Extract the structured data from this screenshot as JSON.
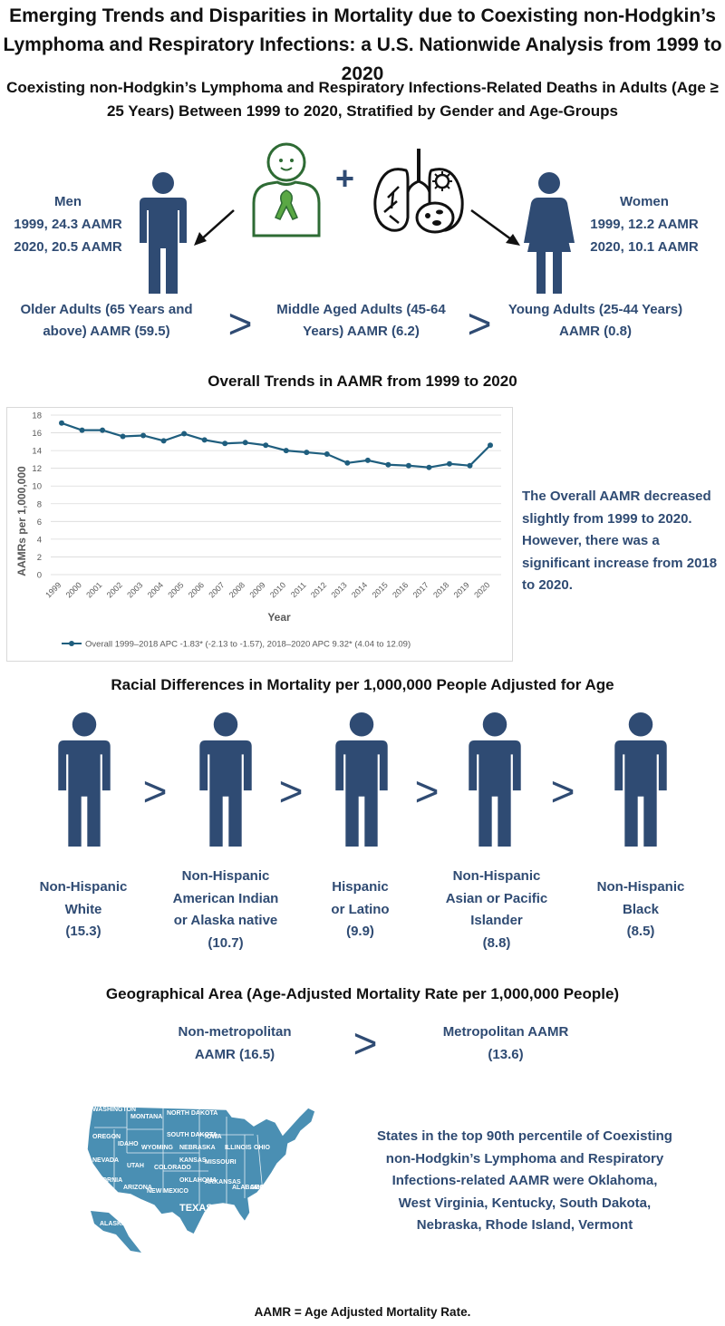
{
  "title": "Emerging Trends and Disparities in Mortality due to Coexisting non-Hodgkin’s Lymphoma and Respiratory Infections: a U.S. Nationwide Analysis from 1999 to 2020",
  "subtitle": "Coexisting non-Hodgkin’s Lymphoma and Respiratory Infections-Related Deaths in Adults (Age ≥ 25 Years) Between 1999 to 2020, Stratified by Gender and Age-Groups",
  "gender": {
    "men": {
      "label": "Men",
      "line1": "1999, 24.3 AAMR",
      "line2": "2020, 20.5 AAMR"
    },
    "women": {
      "label": "Women",
      "line1": "1999, 12.2 AAMR",
      "line2": "2020, 10.1 AAMR"
    },
    "plus": "+"
  },
  "age_groups": {
    "older": "Older Adults (65 Years and above) AAMR (59.5)",
    "middle": "Middle Aged Adults (45-64 Years) AAMR (6.2)",
    "young": "Young Adults (25-44 Years) AAMR (0.8)",
    "gt": ">"
  },
  "trends_title": "Overall Trends in AAMR from 1999 to 2020",
  "trends_note": "The Overall AAMR decreased slightly from 1999 to 2020. However, there was a significant increase from 2018 to 2020.",
  "chart_data": {
    "type": "line",
    "x": [
      "1999",
      "2000",
      "2001",
      "2002",
      "2003",
      "2004",
      "2005",
      "2006",
      "2007",
      "2008",
      "2009",
      "2010",
      "2011",
      "2012",
      "2013",
      "2014",
      "2015",
      "2016",
      "2017",
      "2018",
      "2019",
      "2020"
    ],
    "series": [
      {
        "name": "Overall 1999–2018 APC -1.83* (-2.13 to -1.57), 2018–2020 APC 9.32* (4.04 to 12.09)",
        "values": [
          17.1,
          16.3,
          16.3,
          15.6,
          15.7,
          15.1,
          15.9,
          15.2,
          14.8,
          14.9,
          14.6,
          14.0,
          13.8,
          13.6,
          12.6,
          12.9,
          12.4,
          12.3,
          12.1,
          12.5,
          12.3,
          14.6
        ]
      }
    ],
    "yticks": [
      "0",
      "2",
      "4",
      "6",
      "8",
      "10",
      "12",
      "14",
      "16",
      "18"
    ],
    "ylim": [
      0,
      18
    ],
    "xlabel": "Year",
    "ylabel": "AAMRs per 1,000,000",
    "color": "#1f5e7e"
  },
  "racial": {
    "title": "Racial Differences in Mortality per 1,000,000 People Adjusted for Age",
    "groups": [
      {
        "l1": "Non-Hispanic",
        "l2": "White",
        "l3": "(15.3)"
      },
      {
        "l1": "Non-Hispanic",
        "l2": "American Indian",
        "l3": "or Alaska native",
        "l4": "(10.7)"
      },
      {
        "l1": "Hispanic",
        "l2": "or Latino",
        "l3": "(9.9)"
      },
      {
        "l1": "Non-Hispanic",
        "l2": "Asian or Pacific",
        "l3": "Islander",
        "l4": "(8.8)"
      },
      {
        "l1": "Non-Hispanic",
        "l2": "Black",
        "l3": "(8.5)"
      }
    ]
  },
  "geo": {
    "title": "Geographical Area (Age-Adjusted Mortality Rate per 1,000,000 People)",
    "nonmetro_l1": "Non-metropolitan",
    "nonmetro_l2": "AAMR (16.5)",
    "metro_l1": "Metropolitan AAMR",
    "metro_l2": "(13.6)",
    "states_note": "States in the top 90th percentile of Coexisting non-Hodgkin’s Lymphoma and Respiratory Infections-related AAMR were Oklahoma, West Virginia, Kentucky, South Dakota, Nebraska, Rhode Island, Vermont"
  },
  "map_labels": [
    "WASHINGTON",
    "MONTANA",
    "NORTH DAKOTA",
    "OREGON",
    "IDAHO",
    "WYOMING",
    "SOUTH DAKOTA",
    "NEVADA",
    "UTAH",
    "COLORADO",
    "KANSAS",
    "NEBRASKA",
    "CALIFORNIA",
    "ARIZONA",
    "NEW MEXICO",
    "OKLAHOMA",
    "TEXAS",
    "ALASKA",
    "IOWA",
    "MISSOURI",
    "ARKANSAS",
    "ILLINOIS",
    "OHIO",
    "GEORGIA",
    "ALABAMA"
  ],
  "footer": "AAMR = Age Adjusted Mortality Rate.",
  "colors": {
    "accent": "#2f4b73",
    "line": "#1f5e7e",
    "green": "#2e6b34",
    "map": "#4a8fb3"
  }
}
